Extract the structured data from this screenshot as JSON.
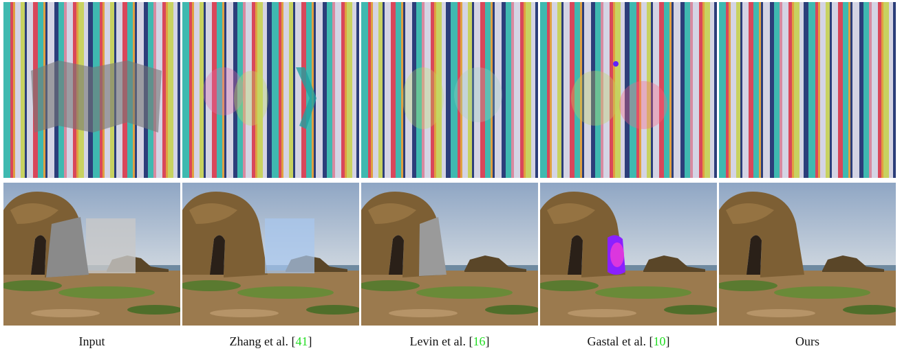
{
  "captions": [
    [
      "Input"
    ],
    [
      "Zhang et al. [",
      "41",
      "]"
    ],
    [
      "Levin et al. [",
      "16",
      "]"
    ],
    [
      "Gastal et al. [",
      "10",
      "]"
    ],
    [
      "Ours"
    ]
  ]
}
